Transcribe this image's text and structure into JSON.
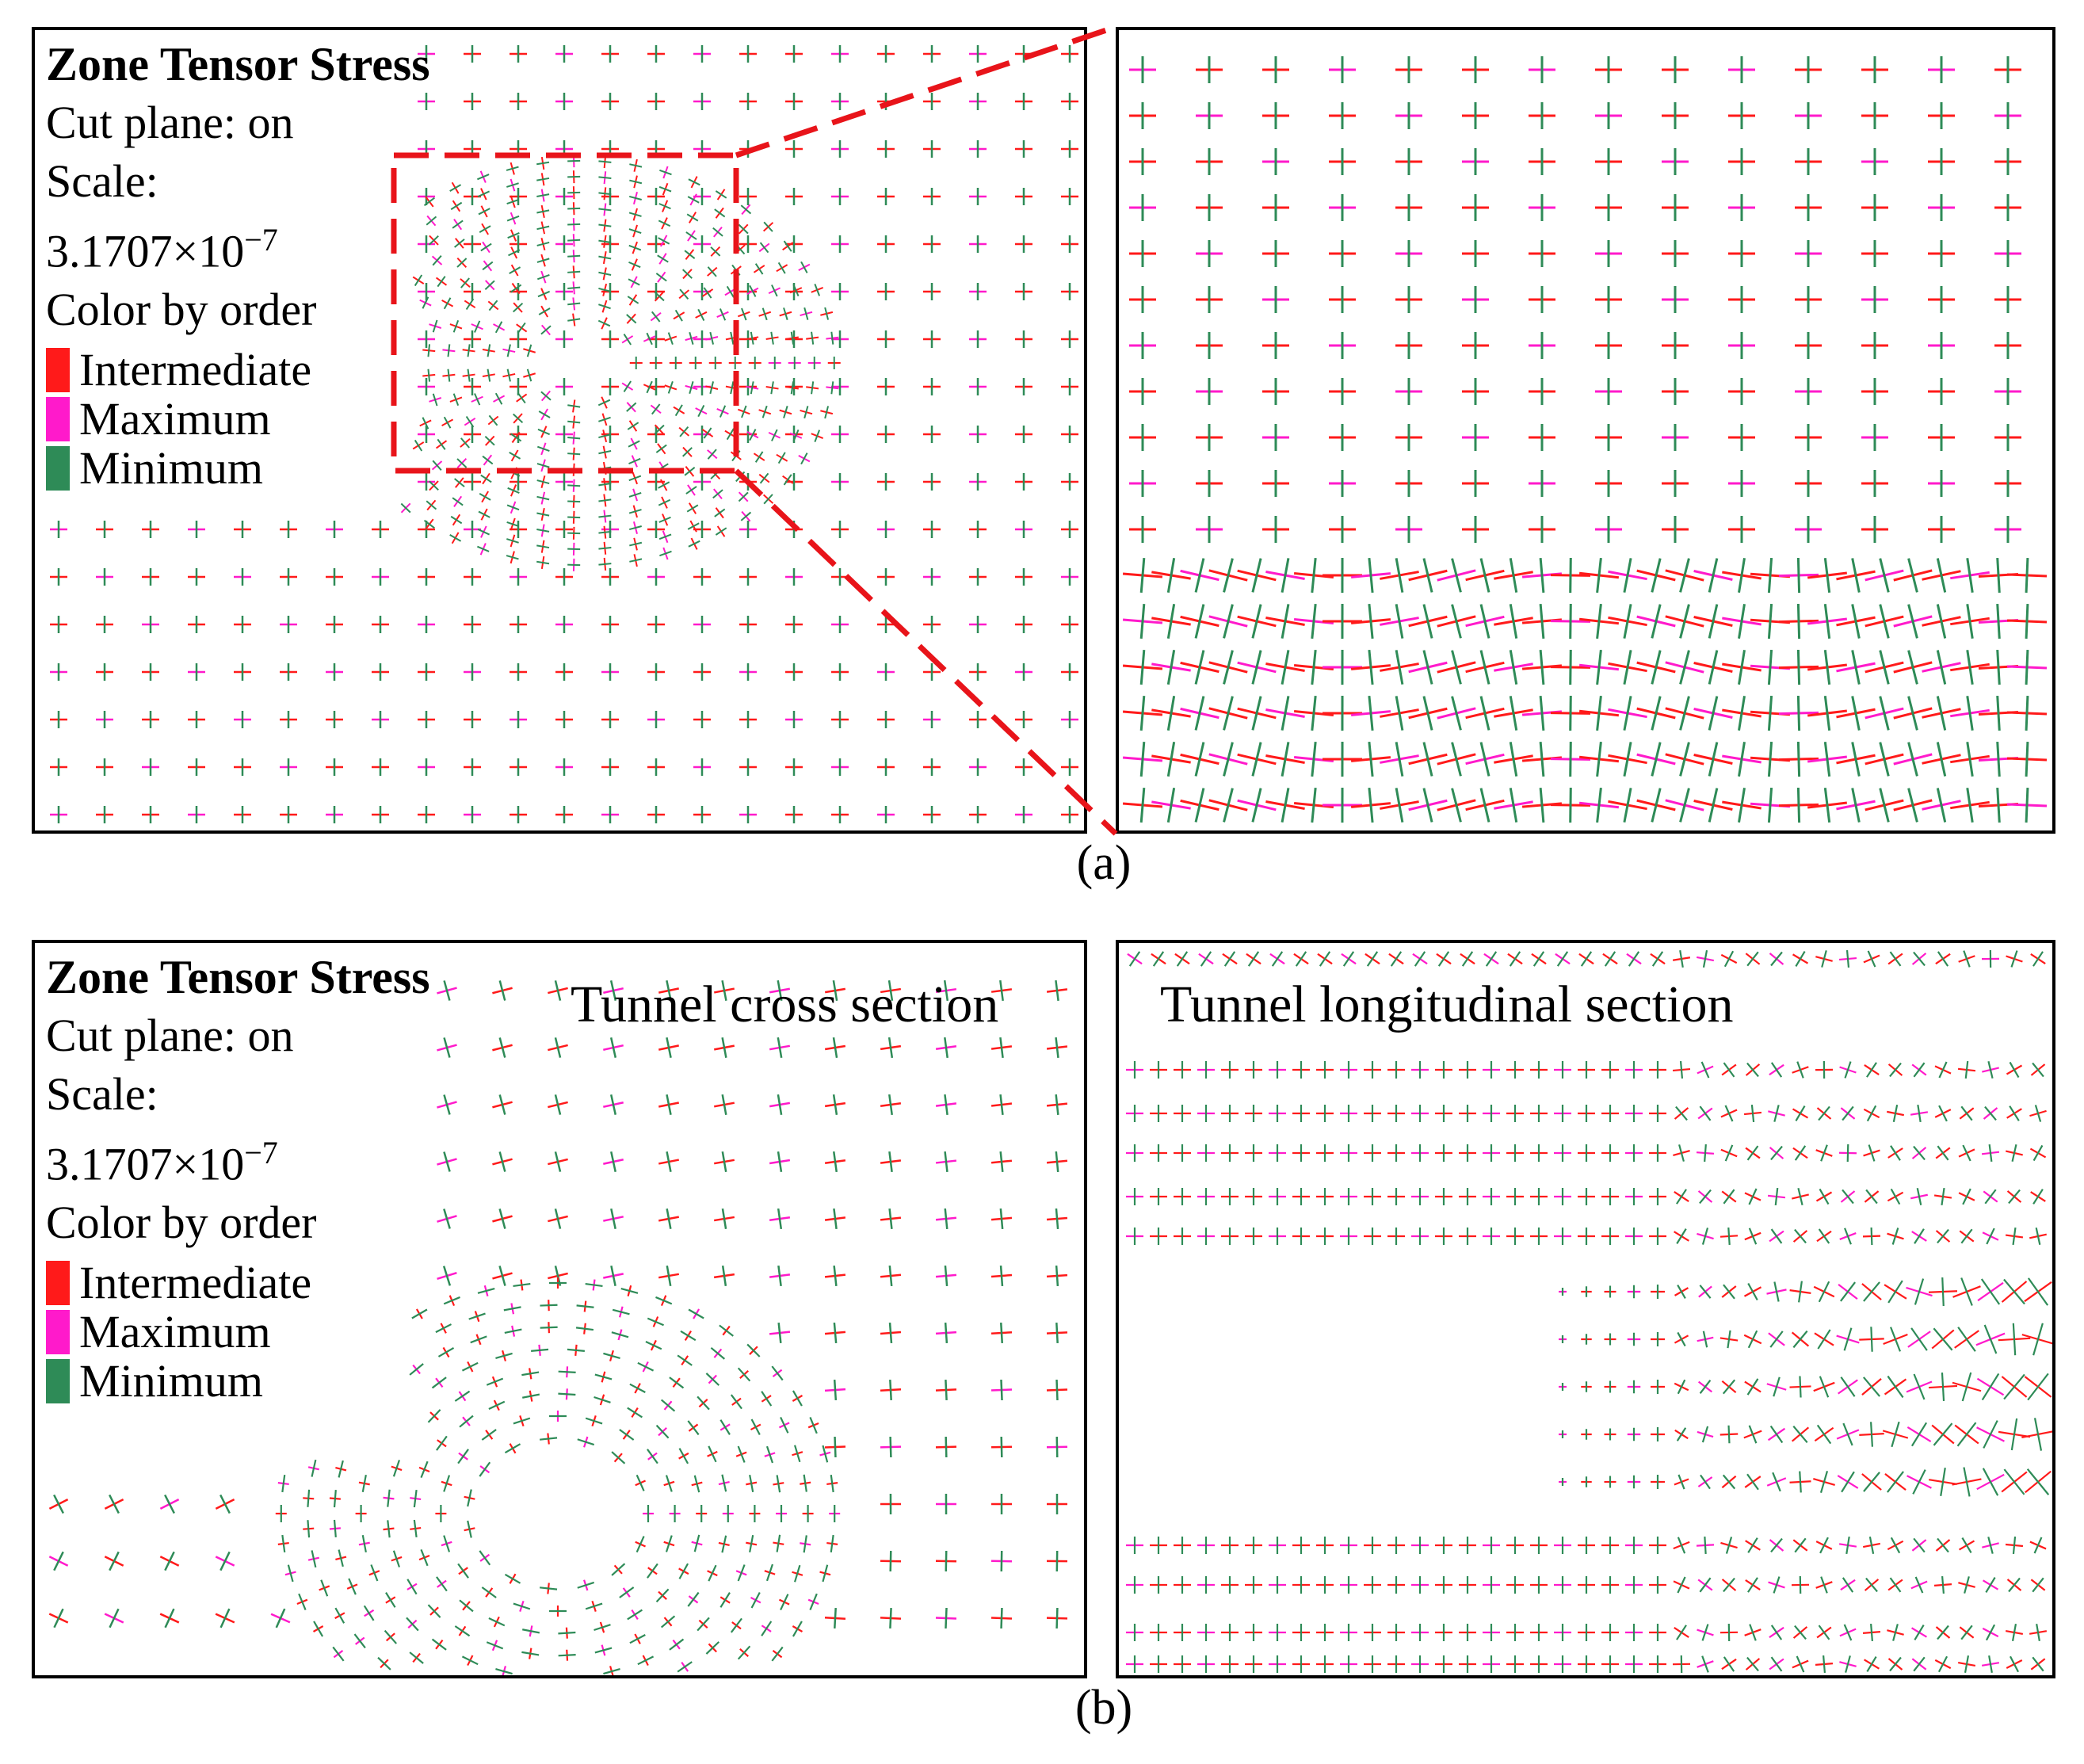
{
  "panel_a": {
    "legend": {
      "title": "Zone Tensor Stress",
      "cut_plane": "Cut plane: on",
      "scale_label": "Scale:",
      "scale_value": "3.1707×10",
      "scale_exponent": "−7",
      "color_by": "Color by order",
      "items": [
        {
          "label": "Intermediate",
          "color": "#ff1a1a"
        },
        {
          "label": "Maximum",
          "color": "#ff1acb"
        },
        {
          "label": "Minimum",
          "color": "#2e8b57"
        }
      ]
    },
    "caption": "(a)"
  },
  "panel_b": {
    "legend": {
      "title": "Zone Tensor Stress",
      "cut_plane": "Cut plane: on",
      "scale_label": "Scale:",
      "scale_value": "3.1707×10",
      "scale_exponent": "−7",
      "color_by": "Color by order",
      "items": [
        {
          "label": "Intermediate",
          "color": "#ff1a1a"
        },
        {
          "label": "Maximum",
          "color": "#ff1acb"
        },
        {
          "label": "Minimum",
          "color": "#2e8b57"
        }
      ]
    },
    "cross_title": "Tunnel cross section",
    "long_title": "Tunnel longitudinal section",
    "caption": "(b)"
  },
  "colors": {
    "intermediate": "#ff1a1a",
    "maximum": "#ff1acb",
    "minimum": "#2e8b57",
    "zoom_box": "#e8141a"
  }
}
